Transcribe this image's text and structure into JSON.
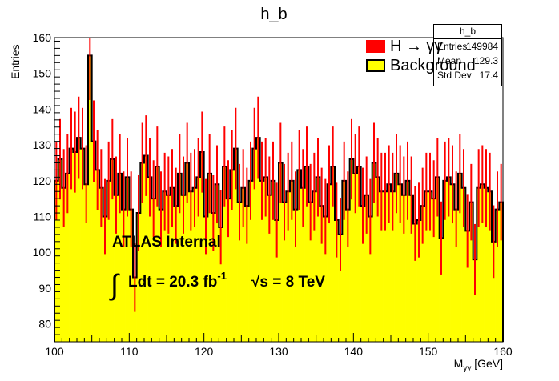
{
  "chart_data": {
    "type": "bar",
    "title": "h_b",
    "xlabel": "M_γγ [GeV]",
    "ylabel": "Entries",
    "xlim": [
      100,
      160
    ],
    "ylim": [
      75,
      160
    ],
    "xticks": [
      100,
      110,
      120,
      130,
      140,
      150,
      160
    ],
    "yticks": [
      80,
      90,
      100,
      110,
      120,
      130,
      140,
      150,
      160
    ],
    "bin_start": 100,
    "bin_width": 0.5,
    "grid": false,
    "legend_position": "top-right",
    "series": [
      {
        "name": "H → γγ",
        "style": "markers with error bars",
        "color": "#ff0000",
        "values": [
          120,
          126,
          118,
          122,
          129,
          128,
          132,
          129,
          119,
          155,
          131,
          123,
          118,
          110,
          120,
          126,
          116,
          122,
          112,
          121,
          112,
          93,
          111,
          125,
          127,
          121,
          115,
          124,
          112,
          117,
          116,
          118,
          113,
          122,
          116,
          125,
          117,
          118,
          121,
          128,
          110,
          122,
          111,
          119,
          107,
          124,
          115,
          123,
          129,
          114,
          118,
          113,
          120,
          129,
          132,
          120,
          121,
          116,
          120,
          109,
          125,
          114,
          117,
          120,
          112,
          123,
          118,
          124,
          114,
          117,
          121,
          113,
          110,
          119,
          124,
          109,
          105,
          120,
          112,
          126,
          122,
          124,
          113,
          116,
          110,
          125,
          121,
          117,
          117,
          119,
          117,
          122,
          119,
          116,
          120,
          116,
          108,
          109,
          113,
          117,
          117,
          115,
          121,
          104,
          120,
          121,
          119,
          112,
          122,
          118,
          106,
          114,
          98,
          118,
          119,
          118,
          117,
          103,
          112,
          114
        ]
      },
      {
        "name": "Background",
        "style": "filled histogram",
        "color": "#ffff00",
        "values": [
          120,
          126,
          118,
          122,
          129,
          128,
          132,
          129,
          119,
          155,
          131,
          123,
          118,
          110,
          120,
          126,
          116,
          122,
          112,
          121,
          112,
          93,
          111,
          125,
          127,
          121,
          115,
          124,
          112,
          117,
          116,
          118,
          113,
          122,
          116,
          125,
          117,
          118,
          121,
          128,
          110,
          122,
          111,
          119,
          107,
          124,
          115,
          123,
          129,
          114,
          118,
          113,
          120,
          129,
          132,
          120,
          121,
          116,
          120,
          109,
          125,
          114,
          117,
          120,
          112,
          123,
          118,
          124,
          114,
          117,
          121,
          113,
          110,
          119,
          124,
          109,
          105,
          120,
          112,
          126,
          122,
          124,
          113,
          116,
          110,
          125,
          121,
          117,
          117,
          119,
          117,
          122,
          119,
          116,
          120,
          116,
          108,
          109,
          113,
          117,
          117,
          115,
          121,
          104,
          120,
          121,
          119,
          112,
          122,
          118,
          106,
          114,
          98,
          118,
          119,
          118,
          117,
          103,
          112,
          114
        ]
      }
    ],
    "annotations": [
      "ATLAS Internal",
      "∫ Ldt = 20.3 fb⁻¹",
      "√s = 8 TeV"
    ]
  },
  "stats": {
    "title": "h_b",
    "rows": [
      {
        "k": "Entries",
        "v": "149984"
      },
      {
        "k": "Mean",
        "v": "129.3"
      },
      {
        "k": "Std Dev",
        "v": "17.4"
      }
    ]
  },
  "legend": {
    "signal": "H → γγ",
    "background": "Background",
    "signal_color": "#ff0000",
    "background_color": "#ffff00"
  },
  "labels": {
    "atlas": "ATLAS Internal",
    "lumi_integral": "∫",
    "lumi": "Ldt = 20.3 fb",
    "lumi_sup": "-1",
    "sqrts": "√s = 8 TeV"
  }
}
